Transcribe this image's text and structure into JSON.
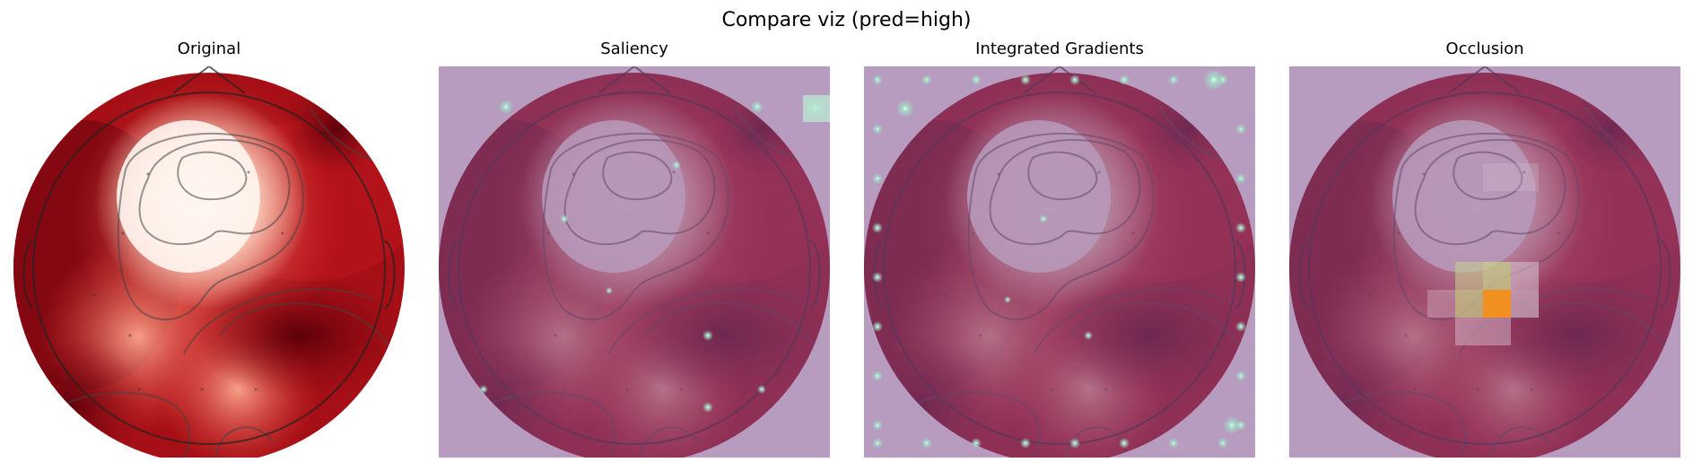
{
  "figure": {
    "suptitle": "Compare viz (pred=high)",
    "panels": [
      {
        "title": "Original",
        "overlay": "none"
      },
      {
        "title": "Saliency",
        "overlay": "saliency"
      },
      {
        "title": "Integrated Gradients",
        "overlay": "integrated-gradients"
      },
      {
        "title": "Occlusion",
        "overlay": "occlusion"
      }
    ]
  },
  "colors": {
    "topomap_low": "#67000d",
    "topomap_mid": "#e3403a",
    "topomap_high": "#fff5f0",
    "overlay_tint": "#7b4a8a",
    "occlusion_hot": "#f7941d",
    "occlusion_warm": "#c8d08a"
  }
}
